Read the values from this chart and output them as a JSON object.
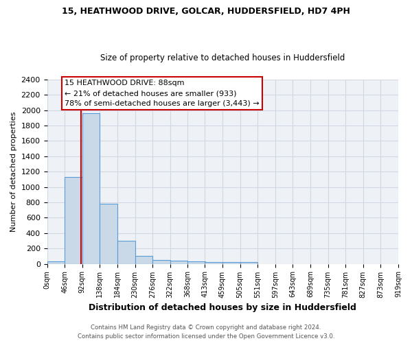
{
  "title1": "15, HEATHWOOD DRIVE, GOLCAR, HUDDERSFIELD, HD7 4PH",
  "title2": "Size of property relative to detached houses in Huddersfield",
  "xlabel": "Distribution of detached houses by size in Huddersfield",
  "ylabel": "Number of detached properties",
  "footer1": "Contains HM Land Registry data © Crown copyright and database right 2024.",
  "footer2": "Contains public sector information licensed under the Open Government Licence v3.0.",
  "property_size": 88,
  "annotation_line1": "15 HEATHWOOD DRIVE: 88sqm",
  "annotation_line2": "← 21% of detached houses are smaller (933)",
  "annotation_line3": "78% of semi-detached houses are larger (3,443) →",
  "bin_edges": [
    0,
    46,
    92,
    138,
    184,
    230,
    276,
    322,
    368,
    413,
    459,
    505,
    551,
    597,
    643,
    689,
    735,
    781,
    827,
    873,
    919
  ],
  "bar_heights": [
    35,
    1130,
    1960,
    780,
    300,
    105,
    50,
    45,
    35,
    20,
    20,
    20,
    0,
    0,
    0,
    0,
    0,
    0,
    0,
    0
  ],
  "bar_color": "#c9d9e8",
  "bar_edge_color": "#5b9bd5",
  "vline_color": "#cc0000",
  "annotation_box_color": "#cc0000",
  "annotation_bg": "#ffffff",
  "ylim": [
    0,
    2400
  ],
  "yticks": [
    0,
    200,
    400,
    600,
    800,
    1000,
    1200,
    1400,
    1600,
    1800,
    2000,
    2200,
    2400
  ],
  "grid_color": "#d0d8e4",
  "bg_color": "#eef2f7",
  "title1_fontsize": 9,
  "title2_fontsize": 8.5
}
